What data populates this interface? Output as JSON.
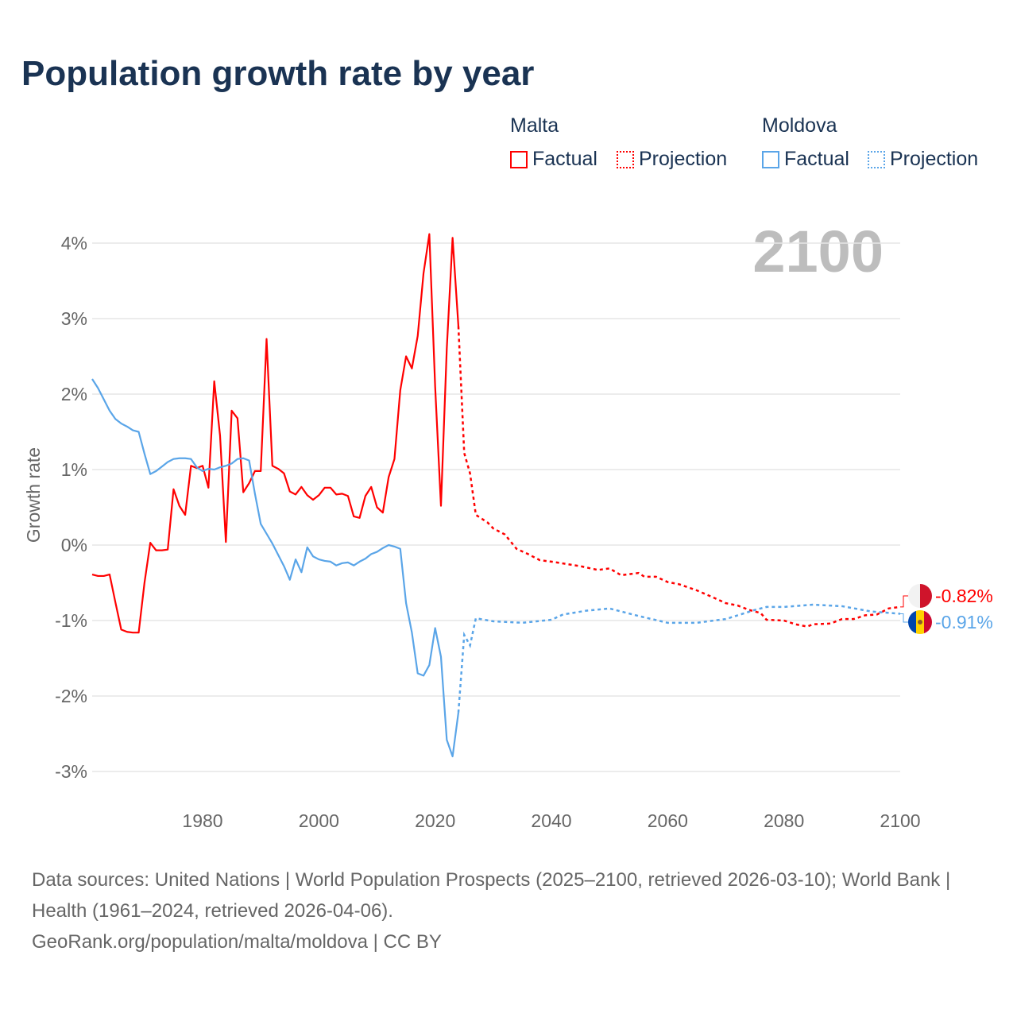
{
  "chart_data": {
    "type": "line",
    "title": "Population growth rate by year",
    "ylabel": "Growth rate",
    "xlabel": "",
    "xlim": [
      1961,
      2100
    ],
    "ylim": [
      -3.4,
      4.4
    ],
    "x_ticks": [
      1980,
      2000,
      2020,
      2040,
      2060,
      2080,
      2100
    ],
    "x_tick_labels": [
      "1980",
      "2000",
      "2020",
      "2040",
      "2060",
      "2080",
      "2100"
    ],
    "y_ticks": [
      4,
      3,
      2,
      1,
      0,
      -1,
      -2,
      -3
    ],
    "y_tick_labels": [
      "4%",
      "3%",
      "2%",
      "1%",
      "0%",
      "-1%",
      "-2%",
      "-3%"
    ],
    "grid": true,
    "year_label": "2100",
    "legend_placement": "top-right",
    "series": [
      {
        "name": "Malta",
        "color": "#ff0000",
        "factual_label": "Factual",
        "projection_label": "Projection",
        "end_label": "-0.82%",
        "factual": {
          "x": [
            1961,
            1962,
            1963,
            1964,
            1965,
            1966,
            1967,
            1968,
            1969,
            1970,
            1971,
            1972,
            1973,
            1974,
            1975,
            1976,
            1977,
            1978,
            1979,
            1980,
            1981,
            1982,
            1983,
            1984,
            1985,
            1986,
            1987,
            1988,
            1989,
            1990,
            1991,
            1992,
            1993,
            1994,
            1995,
            1996,
            1997,
            1998,
            1999,
            2000,
            2001,
            2002,
            2003,
            2004,
            2005,
            2006,
            2007,
            2008,
            2009,
            2010,
            2011,
            2012,
            2013,
            2014,
            2015,
            2016,
            2017,
            2018,
            2019,
            2020,
            2021,
            2022,
            2023,
            2024
          ],
          "y": [
            -0.39,
            -0.41,
            -0.41,
            -0.39,
            -0.76,
            -1.12,
            -1.15,
            -1.16,
            -1.16,
            -0.5,
            0.03,
            -0.07,
            -0.07,
            -0.06,
            0.74,
            0.52,
            0.4,
            1.05,
            1.02,
            1.05,
            0.76,
            2.17,
            1.45,
            0.04,
            1.78,
            1.68,
            0.7,
            0.82,
            0.98,
            0.98,
            2.73,
            1.05,
            1.01,
            0.95,
            0.71,
            0.67,
            0.77,
            0.66,
            0.6,
            0.66,
            0.76,
            0.76,
            0.67,
            0.68,
            0.65,
            0.38,
            0.36,
            0.65,
            0.77,
            0.5,
            0.43,
            0.9,
            1.14,
            2.05,
            2.5,
            2.34,
            2.77,
            3.6,
            4.12,
            2.1,
            0.52,
            2.6,
            4.07,
            2.9
          ]
        },
        "projection": {
          "x": [
            2024,
            2025,
            2026,
            2027,
            2028,
            2029,
            2030,
            2032,
            2034,
            2036,
            2038,
            2040,
            2045,
            2048,
            2050,
            2052,
            2055,
            2056,
            2058,
            2060,
            2062,
            2065,
            2068,
            2070,
            2072,
            2074,
            2076,
            2077,
            2080,
            2082,
            2084,
            2085,
            2088,
            2090,
            2092,
            2094,
            2096,
            2098,
            2100
          ],
          "y": [
            2.9,
            1.22,
            0.95,
            0.4,
            0.35,
            0.3,
            0.22,
            0.14,
            -0.05,
            -0.12,
            -0.2,
            -0.22,
            -0.28,
            -0.33,
            -0.31,
            -0.4,
            -0.37,
            -0.42,
            -0.42,
            -0.49,
            -0.52,
            -0.6,
            -0.7,
            -0.77,
            -0.8,
            -0.86,
            -0.9,
            -0.99,
            -1.0,
            -1.05,
            -1.08,
            -1.05,
            -1.04,
            -0.98,
            -0.98,
            -0.93,
            -0.92,
            -0.84,
            -0.82
          ]
        }
      },
      {
        "name": "Moldova",
        "color": "#5aa5e8",
        "factual_label": "Factual",
        "projection_label": "Projection",
        "end_label": "-0.91%",
        "factual": {
          "x": [
            1961,
            1962,
            1963,
            1964,
            1965,
            1966,
            1967,
            1968,
            1969,
            1970,
            1971,
            1972,
            1973,
            1974,
            1975,
            1976,
            1977,
            1978,
            1979,
            1980,
            1981,
            1982,
            1983,
            1984,
            1985,
            1986,
            1987,
            1988,
            1989,
            1990,
            1991,
            1992,
            1993,
            1994,
            1995,
            1996,
            1997,
            1998,
            1999,
            2000,
            2001,
            2002,
            2003,
            2004,
            2005,
            2006,
            2007,
            2008,
            2009,
            2010,
            2011,
            2012,
            2013,
            2014,
            2015,
            2016,
            2017,
            2018,
            2019,
            2020,
            2021,
            2022,
            2023,
            2024
          ],
          "y": [
            2.2,
            2.08,
            1.93,
            1.78,
            1.67,
            1.61,
            1.57,
            1.52,
            1.5,
            1.21,
            0.94,
            0.98,
            1.04,
            1.1,
            1.14,
            1.15,
            1.15,
            1.14,
            1.03,
            0.98,
            1.01,
            1.0,
            1.03,
            1.05,
            1.08,
            1.14,
            1.15,
            1.12,
            0.68,
            0.28,
            0.15,
            0.02,
            -0.13,
            -0.28,
            -0.46,
            -0.19,
            -0.36,
            -0.03,
            -0.15,
            -0.19,
            -0.21,
            -0.22,
            -0.27,
            -0.24,
            -0.23,
            -0.27,
            -0.22,
            -0.18,
            -0.12,
            -0.09,
            -0.04,
            0.0,
            -0.02,
            -0.05,
            -0.77,
            -1.16,
            -1.7,
            -1.73,
            -1.59,
            -1.1,
            -1.48,
            -2.58,
            -2.8,
            -2.22
          ]
        },
        "projection": {
          "x": [
            2024,
            2025,
            2026,
            2027,
            2030,
            2035,
            2040,
            2042,
            2046,
            2050,
            2055,
            2060,
            2065,
            2070,
            2075,
            2077,
            2080,
            2085,
            2090,
            2095,
            2100
          ],
          "y": [
            -2.22,
            -1.19,
            -1.33,
            -0.97,
            -1.01,
            -1.03,
            -0.99,
            -0.92,
            -0.87,
            -0.84,
            -0.94,
            -1.03,
            -1.03,
            -0.98,
            -0.86,
            -0.82,
            -0.82,
            -0.79,
            -0.81,
            -0.88,
            -0.91
          ]
        }
      }
    ]
  },
  "legend": {
    "malta": {
      "group": "Malta",
      "factual": "Factual",
      "projection": "Projection"
    },
    "moldova": {
      "group": "Moldova",
      "factual": "Factual",
      "projection": "Projection"
    }
  },
  "footer": {
    "sources": "Data sources: United Nations | World Population Prospects (2025–2100, retrieved 2026-03-10); World Bank | Health (1961–2024, retrieved 2026-04-06).",
    "credit": "GeoRank.org/population/malta/moldova | CC BY"
  }
}
